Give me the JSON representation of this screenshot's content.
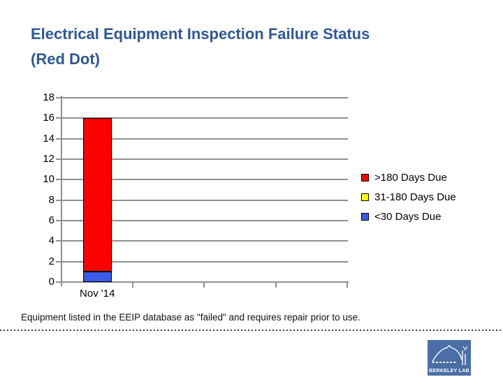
{
  "header": {
    "title_line1": "Electrical Equipment Inspection Failure Status",
    "title_line2": "(Red Dot)"
  },
  "chart_data": {
    "type": "bar",
    "stacked": true,
    "categories": [
      "Nov '14"
    ],
    "category_slots": 4,
    "series": [
      {
        "name": ">180 Days Due",
        "color": "#ff0000",
        "values": [
          15
        ]
      },
      {
        "name": "31-180 Days Due",
        "color": "#ffff00",
        "values": [
          0
        ]
      },
      {
        "name": "<30 Days Due",
        "color": "#3b5be8",
        "values": [
          1
        ]
      }
    ],
    "stack_order_bottom_to_top": [
      "<30 Days Due",
      "31-180 Days Due",
      ">180 Days Due"
    ],
    "stack_total": 16,
    "ylim": [
      0,
      18
    ],
    "yticks": [
      0,
      2,
      4,
      6,
      8,
      10,
      12,
      14,
      16,
      18
    ],
    "xlabel": "",
    "ylabel": "",
    "grid": true,
    "legend_position": "right",
    "grid_color": "#8f8f8f",
    "axis_color": "#8f8f8f",
    "bar_border_color": "#000000"
  },
  "footnote": {
    "text": "Equipment listed in the EEIP database as \"failed\" and requires repair prior to use."
  },
  "logo": {
    "text": "BERKELEY LAB",
    "bg_color": "#4a6ea5"
  },
  "colors": {
    "title_text": "#2d5896",
    "tick_text": "#000000"
  }
}
